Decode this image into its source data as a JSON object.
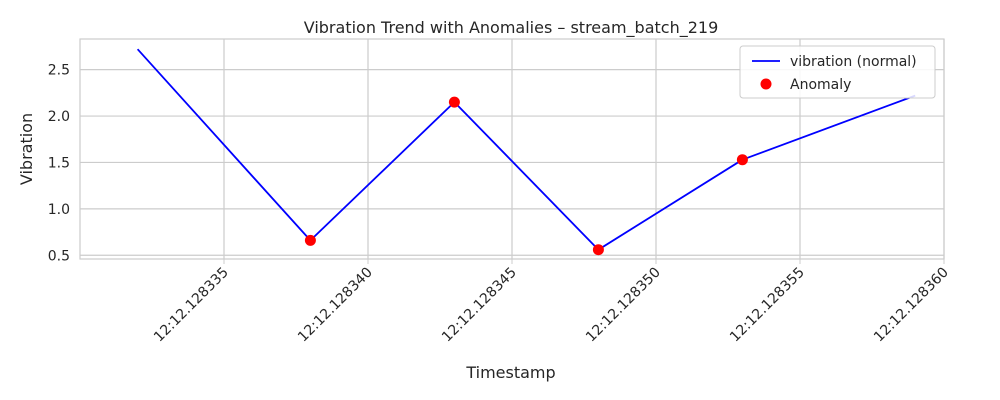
{
  "chart_data": {
    "type": "line",
    "title": "Vibration Trend with Anomalies – stream_batch_219",
    "xlabel": "Timestamp",
    "ylabel": "Vibration",
    "x_ticks": [
      "12:12.128335",
      "12:12.128340",
      "12:12.128345",
      "12:12.128350",
      "12:12.128355",
      "12:12.128360"
    ],
    "y_ticks": [
      "0.5",
      "1.0",
      "1.5",
      "2.0",
      "2.5"
    ],
    "x": [
      12.128332,
      12.128338,
      12.128343,
      12.128348,
      12.128353,
      12.128359
    ],
    "series": [
      {
        "name": "vibration (normal)",
        "values": [
          2.72,
          0.66,
          2.15,
          0.56,
          1.53,
          2.22
        ],
        "color": "#0000ff"
      }
    ],
    "anomalies": {
      "name": "Anomaly",
      "color": "#ff0000",
      "x": [
        12.128338,
        12.128343,
        12.128348,
        12.128353
      ],
      "y": [
        0.66,
        2.15,
        0.56,
        1.53
      ]
    },
    "xlim": [
      12.12833,
      12.12836
    ],
    "ylim": [
      0.46,
      2.83
    ],
    "grid": true,
    "legend_position": "top-right"
  }
}
